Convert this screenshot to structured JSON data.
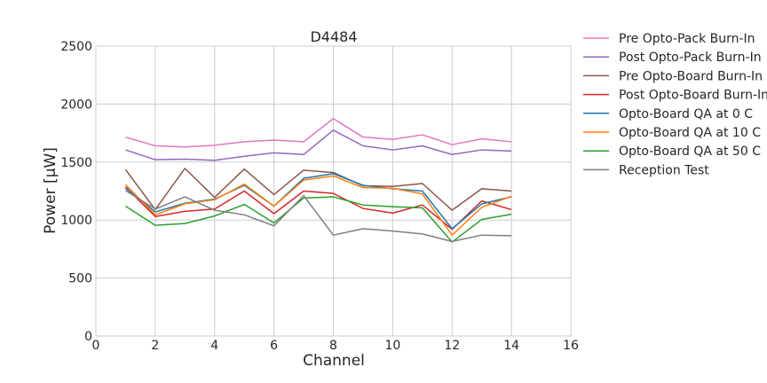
{
  "chart_data": {
    "type": "line",
    "title": "D4484",
    "xlabel": "Channel",
    "ylabel": "Power [µW]",
    "xlim": [
      0,
      16
    ],
    "ylim": [
      0,
      2500
    ],
    "xticks": [
      0,
      2,
      4,
      6,
      8,
      10,
      12,
      14,
      16
    ],
    "yticks": [
      0,
      500,
      1000,
      1500,
      2000,
      2500
    ],
    "grid": true,
    "legend_position": "outside-right-top",
    "x": [
      1,
      2,
      3,
      4,
      5,
      6,
      7,
      8,
      9,
      10,
      11,
      12,
      13,
      14
    ],
    "series": [
      {
        "name": "Pre Opto-Pack Burn-In",
        "color": "#e377c2",
        "values": [
          1715,
          1640,
          1630,
          1645,
          1675,
          1690,
          1675,
          1875,
          1715,
          1695,
          1735,
          1650,
          1700,
          1675
        ]
      },
      {
        "name": "Post Opto-Pack Burn-In",
        "color": "#9467bd",
        "values": [
          1605,
          1520,
          1525,
          1515,
          1550,
          1580,
          1565,
          1775,
          1640,
          1605,
          1640,
          1565,
          1605,
          1595
        ]
      },
      {
        "name": "Pre Opto-Board Burn-In",
        "color": "#8c564b",
        "values": [
          1435,
          1090,
          1445,
          1195,
          1440,
          1220,
          1430,
          1410,
          1295,
          1290,
          1315,
          1085,
          1270,
          1250
        ]
      },
      {
        "name": "Post Opto-Board Burn-In",
        "color": "#d62728",
        "values": [
          1285,
          1030,
          1075,
          1095,
          1250,
          1055,
          1250,
          1230,
          1100,
          1060,
          1130,
          920,
          1165,
          1090
        ]
      },
      {
        "name": "Opto-Board QA at 0 C",
        "color": "#1f77b4",
        "values": [
          1275,
          1070,
          1145,
          1180,
          1300,
          1120,
          1360,
          1400,
          1300,
          1270,
          1250,
          925,
          1140,
          1200
        ]
      },
      {
        "name": "Opto-Board QA at 10 C",
        "color": "#ff7f0e",
        "values": [
          1305,
          1045,
          1140,
          1175,
          1310,
          1120,
          1345,
          1380,
          1280,
          1275,
          1225,
          870,
          1110,
          1205
        ]
      },
      {
        "name": "Opto-Board QA at 50 C",
        "color": "#2ca02c",
        "values": [
          1120,
          955,
          970,
          1035,
          1135,
          975,
          1190,
          1200,
          1130,
          1115,
          1105,
          810,
          1005,
          1050
        ]
      },
      {
        "name": "Reception Test",
        "color": "#7f7f7f",
        "values": [
          1255,
          1095,
          1200,
          1085,
          1045,
          950,
          1210,
          870,
          925,
          905,
          880,
          815,
          870,
          865
        ]
      }
    ]
  }
}
